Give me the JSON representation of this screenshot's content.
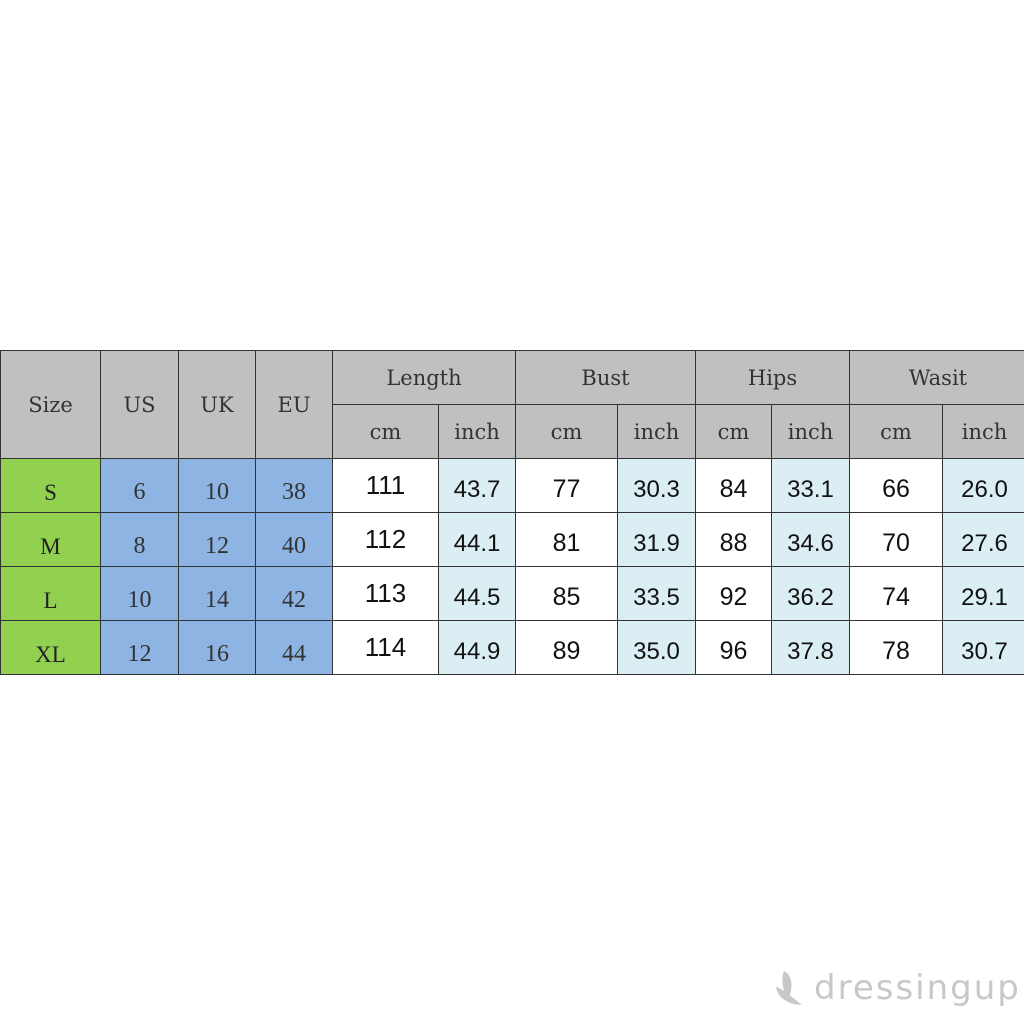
{
  "headers": {
    "size": "Size",
    "us": "US",
    "uk": "UK",
    "eu": "EU",
    "groups": [
      "Length",
      "Bust",
      "Hips",
      "Wasit"
    ],
    "units": [
      "cm",
      "inch",
      "cm",
      "inch",
      "cm",
      "inch",
      "cm",
      "inch"
    ]
  },
  "rows": [
    {
      "size": "S",
      "us": "6",
      "uk": "10",
      "eu": "38",
      "vals": [
        "111",
        "43.7",
        "77",
        "30.3",
        "84",
        "33.1",
        "66",
        "26.0"
      ]
    },
    {
      "size": "M",
      "us": "8",
      "uk": "12",
      "eu": "40",
      "vals": [
        "112",
        "44.1",
        "81",
        "31.9",
        "88",
        "34.6",
        "70",
        "27.6"
      ]
    },
    {
      "size": "L",
      "us": "10",
      "uk": "14",
      "eu": "42",
      "vals": [
        "113",
        "44.5",
        "85",
        "33.5",
        "92",
        "36.2",
        "74",
        "29.1"
      ]
    },
    {
      "size": "XL",
      "us": "12",
      "uk": "16",
      "eu": "44",
      "vals": [
        "114",
        "44.9",
        "89",
        "35.0",
        "96",
        "37.8",
        "78",
        "30.7"
      ]
    }
  ],
  "colors": {
    "header": "#c0c0c0",
    "size_col": "#92d050",
    "intl_cols": "#8db4e2",
    "inch_cols": "#daeef3"
  },
  "watermark": {
    "text": "dressingup",
    "icon": "leaf-icon"
  }
}
